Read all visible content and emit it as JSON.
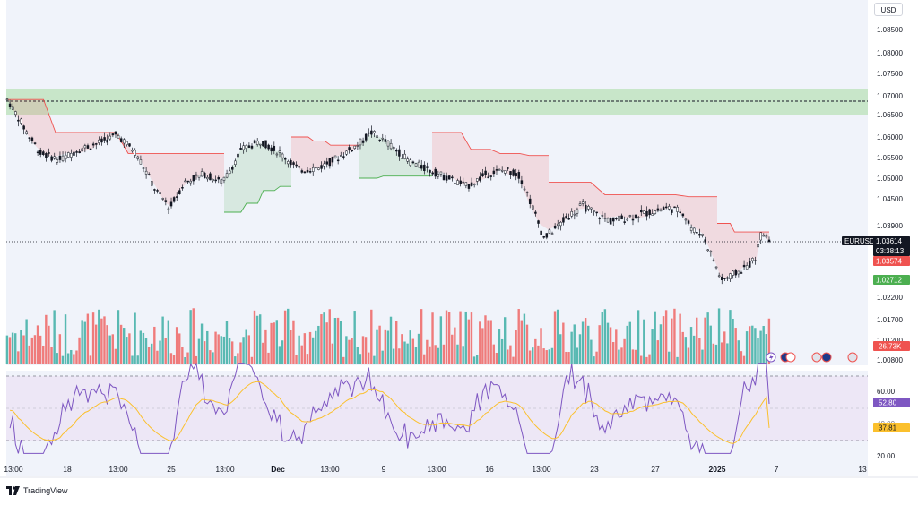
{
  "currency_label": "USD",
  "brand": "TradingView",
  "symbol": "EURUSD",
  "last_price": "1.03614",
  "countdown": "03:38:13",
  "supertrend_upper_label": "1.03574",
  "supertrend_lower_label": "1.02712",
  "volume_label": "26.73K",
  "rsi_value_label": "52.80",
  "rsi_ma_label": "37.81",
  "colors": {
    "bull": "#26a69a",
    "bear": "#ef5350",
    "zone": "#c8e6c9",
    "rsi_line": "#7e57c2",
    "rsi_ma": "#fbc02d",
    "rsi_bg": "#ede7f6"
  },
  "price_axis": [
    "1.08500",
    "1.08000",
    "1.07500",
    "1.07000",
    "1.06500",
    "1.06000",
    "1.05500",
    "1.05000",
    "1.04500",
    "1.03900",
    "1.02200",
    "1.01700",
    "1.01200",
    "1.00800"
  ],
  "rsi_axis": [
    "60.00",
    "40.00",
    "20.00"
  ],
  "time_axis": [
    "13:00",
    "18",
    "13:00",
    "25",
    "13:00",
    "Dec",
    "13:00",
    "9",
    "13:00",
    "16",
    "13:00",
    "23",
    "27",
    "2025",
    "7",
    "13"
  ],
  "time_axis_bold": [
    "Dec",
    "2025"
  ],
  "chart_data": {
    "type": "candlestick",
    "symbol": "EURUSD",
    "quote_currency": "USD",
    "last_price": 1.03614,
    "supertrend_upper": 1.03574,
    "supertrend_lower": 1.02712,
    "volume_last": "26.73K",
    "rsi": 52.8,
    "rsi_ma": 37.81,
    "supply_zone": [
      1.0665,
      1.0725
    ],
    "zone_mid": 1.0695,
    "price_path": [
      {
        "t": 0,
        "p": 1.069
      },
      {
        "t": 6,
        "p": 1.063
      },
      {
        "t": 14,
        "p": 1.056
      },
      {
        "t": 22,
        "p": 1.0545
      },
      {
        "t": 30,
        "p": 1.057
      },
      {
        "t": 38,
        "p": 1.0585
      },
      {
        "t": 46,
        "p": 1.0605
      },
      {
        "t": 54,
        "p": 1.056
      },
      {
        "t": 62,
        "p": 1.047
      },
      {
        "t": 68,
        "p": 1.043
      },
      {
        "t": 74,
        "p": 1.049
      },
      {
        "t": 82,
        "p": 1.051
      },
      {
        "t": 90,
        "p": 1.049
      },
      {
        "t": 98,
        "p": 1.057
      },
      {
        "t": 106,
        "p": 1.059
      },
      {
        "t": 114,
        "p": 1.056
      },
      {
        "t": 122,
        "p": 1.052
      },
      {
        "t": 130,
        "p": 1.0525
      },
      {
        "t": 138,
        "p": 1.055
      },
      {
        "t": 146,
        "p": 1.058
      },
      {
        "t": 152,
        "p": 1.061
      },
      {
        "t": 160,
        "p": 1.058
      },
      {
        "t": 168,
        "p": 1.054
      },
      {
        "t": 176,
        "p": 1.052
      },
      {
        "t": 184,
        "p": 1.05
      },
      {
        "t": 192,
        "p": 1.048
      },
      {
        "t": 200,
        "p": 1.051
      },
      {
        "t": 208,
        "p": 1.052
      },
      {
        "t": 214,
        "p": 1.0505
      },
      {
        "t": 220,
        "p": 1.042
      },
      {
        "t": 224,
        "p": 1.036
      },
      {
        "t": 228,
        "p": 1.038
      },
      {
        "t": 234,
        "p": 1.041
      },
      {
        "t": 240,
        "p": 1.0435
      },
      {
        "t": 246,
        "p": 1.0415
      },
      {
        "t": 252,
        "p": 1.04
      },
      {
        "t": 260,
        "p": 1.041
      },
      {
        "t": 268,
        "p": 1.042
      },
      {
        "t": 276,
        "p": 1.043
      },
      {
        "t": 282,
        "p": 1.042
      },
      {
        "t": 286,
        "p": 1.038
      },
      {
        "t": 290,
        "p": 1.037
      },
      {
        "t": 294,
        "p": 1.032
      },
      {
        "t": 298,
        "p": 1.026
      },
      {
        "t": 302,
        "p": 1.027
      },
      {
        "t": 308,
        "p": 1.029
      },
      {
        "t": 312,
        "p": 1.031
      },
      {
        "t": 315,
        "p": 1.0375
      },
      {
        "t": 318,
        "p": 1.0361
      }
    ],
    "xlim": [
      0,
      318
    ],
    "ylim": [
      1.008,
      1.09
    ]
  }
}
